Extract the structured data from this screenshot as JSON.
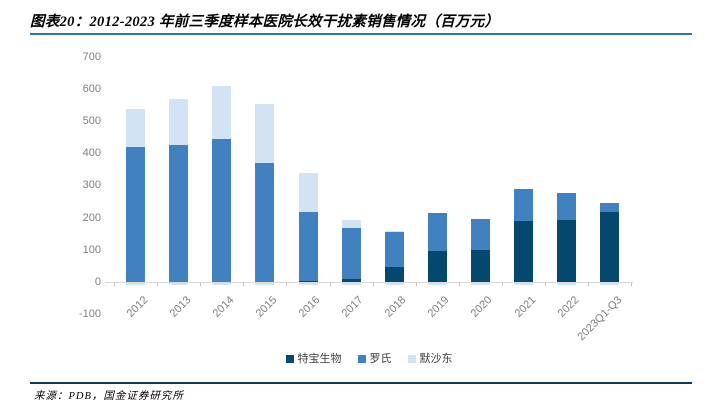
{
  "header": {
    "title": "图表20：2012-2023 年前三季度样本医院长效干扰素销售情况（百万元）"
  },
  "footer": {
    "source": "来源：PDB，国金证券研究所"
  },
  "chart_data": {
    "type": "bar",
    "stacked": true,
    "title": "",
    "xlabel": "",
    "ylabel": "",
    "categories": [
      "2012",
      "2013",
      "2014",
      "2015",
      "2016",
      "2017",
      "2018",
      "2019",
      "2020",
      "2021",
      "2022",
      "2023Q1-Q3"
    ],
    "series": [
      {
        "name": "特宝生物",
        "color": "#05486e",
        "values": [
          0,
          0,
          0,
          0,
          2,
          8,
          47,
          97,
          100,
          190,
          192,
          218
        ]
      },
      {
        "name": "罗氏",
        "color": "#4281bf",
        "values": [
          420,
          425,
          445,
          370,
          214,
          159,
          107,
          117,
          95,
          100,
          85,
          27
        ]
      },
      {
        "name": "默沙东",
        "color": "#d2e3f3",
        "values": [
          118,
          143,
          163,
          183,
          124,
          25,
          5,
          0,
          0,
          0,
          0,
          0
        ]
      }
    ],
    "totals": [
      538,
      568,
      608,
      553,
      340,
      192,
      159,
      214,
      195,
      290,
      277,
      245
    ],
    "ylim": [
      -100,
      700
    ],
    "yticks": [
      700,
      600,
      500,
      400,
      300,
      200,
      100,
      0,
      -100
    ],
    "below_axis_sliver": -5,
    "grid": false,
    "legend_position": "bottom",
    "axis_color": "#d9d9d9",
    "tick_label_color": "#7f7f7f"
  }
}
